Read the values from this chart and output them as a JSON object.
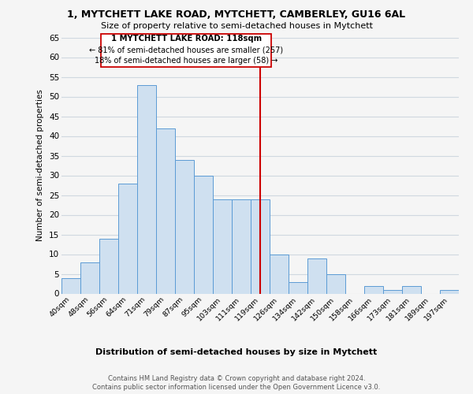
{
  "title1": "1, MYTCHETT LAKE ROAD, MYTCHETT, CAMBERLEY, GU16 6AL",
  "title2": "Size of property relative to semi-detached houses in Mytchett",
  "xlabel": "Distribution of semi-detached houses by size in Mytchett",
  "ylabel": "Number of semi-detached properties",
  "bar_labels": [
    "40sqm",
    "48sqm",
    "56sqm",
    "64sqm",
    "71sqm",
    "79sqm",
    "87sqm",
    "95sqm",
    "103sqm",
    "111sqm",
    "119sqm",
    "126sqm",
    "134sqm",
    "142sqm",
    "150sqm",
    "158sqm",
    "166sqm",
    "173sqm",
    "181sqm",
    "189sqm",
    "197sqm"
  ],
  "bar_values": [
    4,
    8,
    14,
    28,
    53,
    42,
    34,
    30,
    24,
    24,
    24,
    10,
    3,
    9,
    5,
    0,
    2,
    1,
    2,
    0,
    1
  ],
  "bar_color": "#cfe0f0",
  "bar_edge_color": "#5b9bd5",
  "vline_color": "#cc0000",
  "vline_pos": 10.5,
  "annotation_title": "1 MYTCHETT LAKE ROAD: 118sqm",
  "annotation_line1": "← 81% of semi-detached houses are smaller (257)",
  "annotation_line2": "18% of semi-detached houses are larger (58) →",
  "annotation_box_color": "#ffffff",
  "annotation_box_edge": "#cc0000",
  "ylim": [
    0,
    65
  ],
  "yticks": [
    0,
    5,
    10,
    15,
    20,
    25,
    30,
    35,
    40,
    45,
    50,
    55,
    60,
    65
  ],
  "footer1": "Contains HM Land Registry data © Crown copyright and database right 2024.",
  "footer2": "Contains public sector information licensed under the Open Government Licence v3.0.",
  "bg_color": "#f5f5f5",
  "grid_color": "#d0d8e0"
}
